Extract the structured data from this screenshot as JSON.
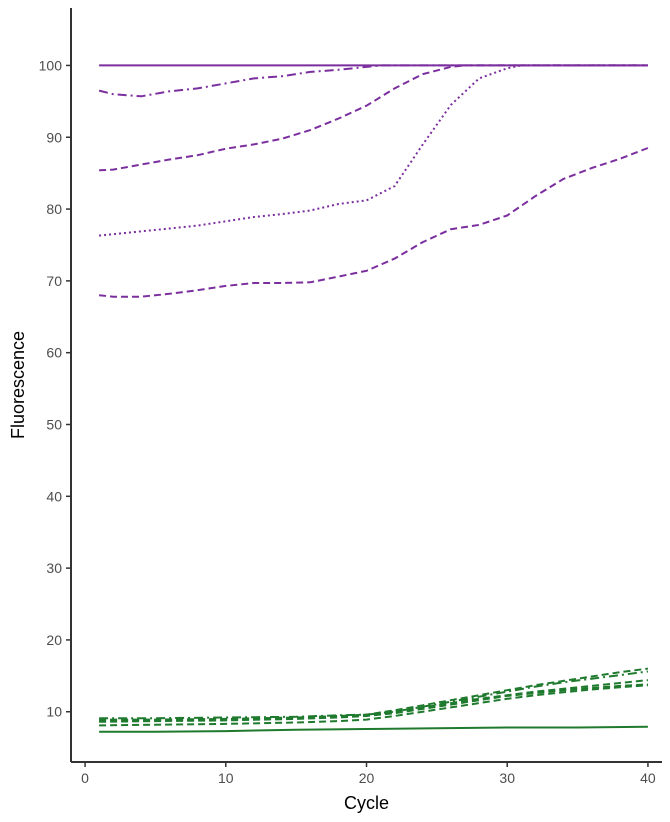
{
  "chart_data": {
    "type": "line",
    "title": "",
    "xlabel": "Cycle",
    "ylabel": "Fluorescence",
    "xlim": [
      -1,
      41
    ],
    "ylim": [
      3,
      108
    ],
    "x_ticks": [
      0,
      10,
      20,
      30,
      40
    ],
    "y_ticks": [
      10,
      20,
      30,
      40,
      50,
      60,
      70,
      80,
      90,
      100
    ],
    "grid": false,
    "legend": "none",
    "colors": {
      "purple": "#7b2f9e",
      "green": "#1f7a2e"
    },
    "series": [
      {
        "color": "purple",
        "dash": "solid",
        "x": [
          1,
          40
        ],
        "y": [
          100,
          100
        ]
      },
      {
        "color": "purple",
        "dash": "dashdot",
        "x": [
          1,
          2,
          4,
          6,
          8,
          10,
          12,
          14,
          16,
          18,
          20,
          21,
          22,
          24,
          26,
          28,
          30,
          32,
          34,
          36,
          38,
          40
        ],
        "y": [
          96.5,
          96,
          95.7,
          96.4,
          96.8,
          97.5,
          98.2,
          98.5,
          99.1,
          99.4,
          99.8,
          100,
          100,
          100,
          100,
          100,
          100,
          100,
          100,
          100,
          100,
          100
        ]
      },
      {
        "color": "purple",
        "dash": "dashed",
        "x": [
          1,
          2,
          4,
          6,
          8,
          10,
          12,
          14,
          16,
          18,
          20,
          22,
          24,
          26,
          27,
          28,
          30,
          32,
          34,
          36,
          38,
          40
        ],
        "y": [
          85.4,
          85.5,
          86.2,
          86.9,
          87.5,
          88.4,
          89,
          89.8,
          91,
          92.6,
          94.4,
          96.8,
          98.8,
          99.8,
          100,
          100,
          100,
          100,
          100,
          100,
          100,
          100
        ]
      },
      {
        "color": "purple",
        "dash": "dotted",
        "x": [
          1,
          2,
          4,
          6,
          8,
          10,
          12,
          14,
          16,
          18,
          20,
          22,
          24,
          26,
          28,
          30,
          31,
          32,
          34,
          36,
          38,
          40
        ],
        "y": [
          76.3,
          76.5,
          76.9,
          77.3,
          77.7,
          78.3,
          78.9,
          79.3,
          79.8,
          80.7,
          81.2,
          83.2,
          89,
          94.5,
          98.2,
          99.6,
          100,
          100,
          100,
          100,
          100,
          100
        ]
      },
      {
        "color": "purple",
        "dash": "dashed",
        "x": [
          1,
          2,
          4,
          6,
          8,
          10,
          12,
          14,
          16,
          18,
          20,
          22,
          24,
          26,
          28,
          30,
          32,
          34,
          36,
          38,
          40
        ],
        "y": [
          68,
          67.8,
          67.8,
          68.2,
          68.7,
          69.3,
          69.7,
          69.7,
          69.8,
          70.6,
          71.4,
          73.1,
          75.4,
          77.2,
          77.8,
          79.1,
          81.8,
          84.2,
          85.7,
          87,
          88.5
        ]
      },
      {
        "color": "green",
        "dash": "solid",
        "x": [
          1,
          5,
          10,
          15,
          20,
          25,
          30,
          35,
          40
        ],
        "y": [
          7.2,
          7.2,
          7.3,
          7.5,
          7.6,
          7.7,
          7.8,
          7.8,
          7.9
        ]
      },
      {
        "color": "green",
        "dash": "dashdot",
        "x": [
          1,
          5,
          10,
          15,
          18,
          20,
          22,
          24,
          26,
          28,
          30,
          32,
          34,
          36,
          38,
          40
        ],
        "y": [
          9.1,
          9.1,
          9.2,
          9.3,
          9.5,
          9.6,
          10,
          10.7,
          11.4,
          12.1,
          12.8,
          13.5,
          14.1,
          14.6,
          15.1,
          15.6
        ]
      },
      {
        "color": "green",
        "dash": "dashed",
        "x": [
          1,
          5,
          10,
          15,
          18,
          20,
          22,
          24,
          26,
          28,
          30,
          32,
          34,
          36,
          38,
          40
        ],
        "y": [
          8.9,
          8.9,
          9,
          9.2,
          9.4,
          9.6,
          10.2,
          10.9,
          11.6,
          12.3,
          13,
          13.7,
          14.3,
          14.9,
          15.5,
          16
        ]
      },
      {
        "color": "green",
        "dash": "dashed",
        "x": [
          1,
          5,
          10,
          15,
          18,
          20,
          22,
          24,
          26,
          28,
          30,
          32,
          34,
          36,
          38,
          40
        ],
        "y": [
          8.8,
          8.8,
          8.9,
          9.1,
          9.3,
          9.5,
          10,
          10.6,
          11.2,
          11.8,
          12.3,
          12.8,
          13.2,
          13.6,
          14,
          14.4
        ]
      },
      {
        "color": "green",
        "dash": "dashed",
        "x": [
          1,
          5,
          10,
          15,
          18,
          20,
          22,
          24,
          26,
          28,
          30,
          32,
          34,
          36,
          38,
          40
        ],
        "y": [
          8.6,
          8.7,
          8.8,
          9,
          9.2,
          9.4,
          9.8,
          10.4,
          11,
          11.6,
          12.2,
          12.6,
          13,
          13.3,
          13.6,
          13.8
        ]
      },
      {
        "color": "green",
        "dash": "dashed",
        "x": [
          1,
          5,
          10,
          15,
          18,
          20,
          22,
          24,
          26,
          28,
          30,
          32,
          34,
          36,
          38,
          40
        ],
        "y": [
          8.1,
          8.2,
          8.3,
          8.5,
          8.7,
          8.9,
          9.4,
          10,
          10.6,
          11.2,
          11.8,
          12.3,
          12.7,
          13.1,
          13.4,
          13.7
        ]
      }
    ]
  }
}
